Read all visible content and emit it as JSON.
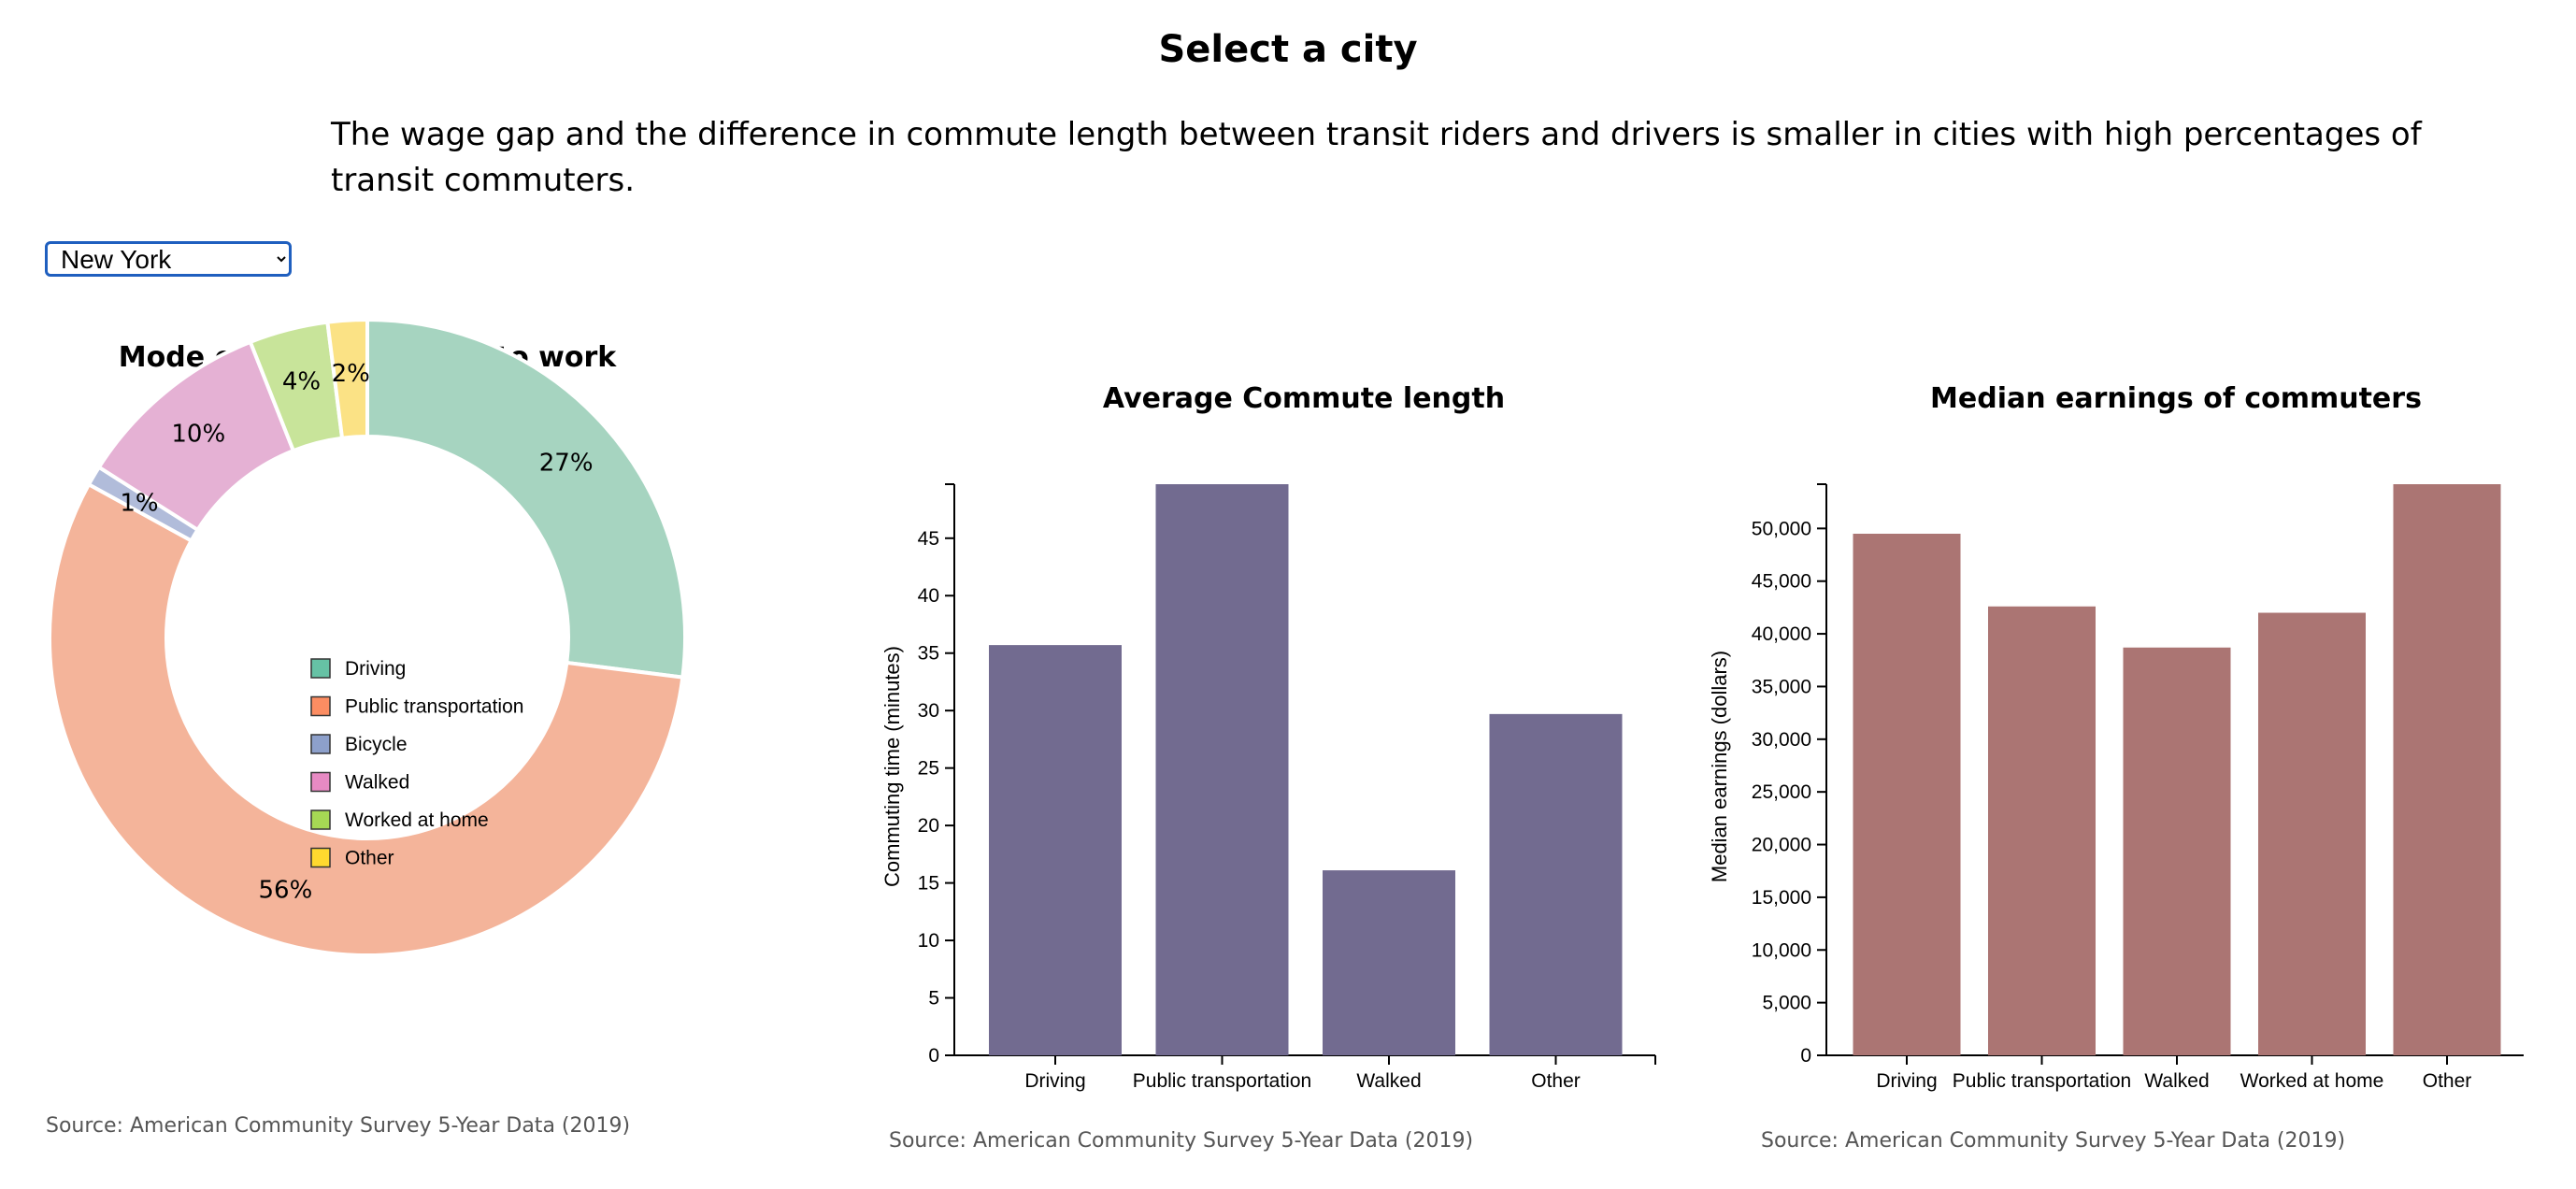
{
  "page": {
    "title": "Select a city",
    "intro": "The wage gap and the difference in commute length between transit riders and drivers is smaller in cities with high percentages of transit commuters.",
    "city_select": {
      "selected": "New York"
    }
  },
  "chart_data": [
    {
      "type": "pie",
      "donut": true,
      "title": "Mode of transportation to work",
      "categories": [
        "Driving",
        "Public transportation",
        "Bicycle",
        "Walked",
        "Worked at home",
        "Other"
      ],
      "values": [
        27,
        56,
        1,
        10,
        4,
        2
      ],
      "slice_labels": [
        "27%",
        "56%",
        "1%",
        "10%",
        "4%",
        "2%"
      ],
      "colors": [
        "#a6d4c0",
        "#f4b49a",
        "#b1bcda",
        "#e5b1d4",
        "#c8e49a",
        "#fbe285"
      ],
      "legend_colors": [
        "#66c2a5",
        "#fc8d62",
        "#8da0cb",
        "#e78ac3",
        "#a6d854",
        "#ffd92f"
      ],
      "legend_placement": "center",
      "source": "Source: American Community Survey 5-Year Data (2019)"
    },
    {
      "type": "bar",
      "title": "Average Commute length",
      "categories": [
        "Driving",
        "Public transportation",
        "Walked",
        "Other"
      ],
      "values": [
        35.7,
        49.7,
        16.1,
        29.7
      ],
      "ylabel": "Commuting time (minutes)",
      "ylim": [
        0,
        49.7
      ],
      "yticks": [
        0,
        5,
        10,
        15,
        20,
        25,
        30,
        35,
        40,
        45
      ],
      "ytick_labels": [
        "0",
        "5",
        "10",
        "15",
        "20",
        "25",
        "30",
        "35",
        "40",
        "45"
      ],
      "color": "#726b90",
      "source": "Source: American Community Survey 5-Year Data (2019)"
    },
    {
      "type": "bar",
      "title": "Median earnings of commuters",
      "categories": [
        "Driving",
        "Public transportation",
        "Walked",
        "Worked at home",
        "Other"
      ],
      "values": [
        49500,
        42600,
        38700,
        42000,
        54200
      ],
      "ylabel": "Median earnings (dollars)",
      "ylim": [
        0,
        54200
      ],
      "yticks": [
        0,
        5000,
        10000,
        15000,
        20000,
        25000,
        30000,
        35000,
        40000,
        45000,
        50000
      ],
      "ytick_labels": [
        "0",
        "5,000",
        "10,000",
        "15,000",
        "20,000",
        "25,000",
        "30,000",
        "35,000",
        "40,000",
        "45,000",
        "50,000"
      ],
      "color": "#ab7573",
      "source": "Source: American Community Survey 5-Year Data (2019)"
    }
  ]
}
